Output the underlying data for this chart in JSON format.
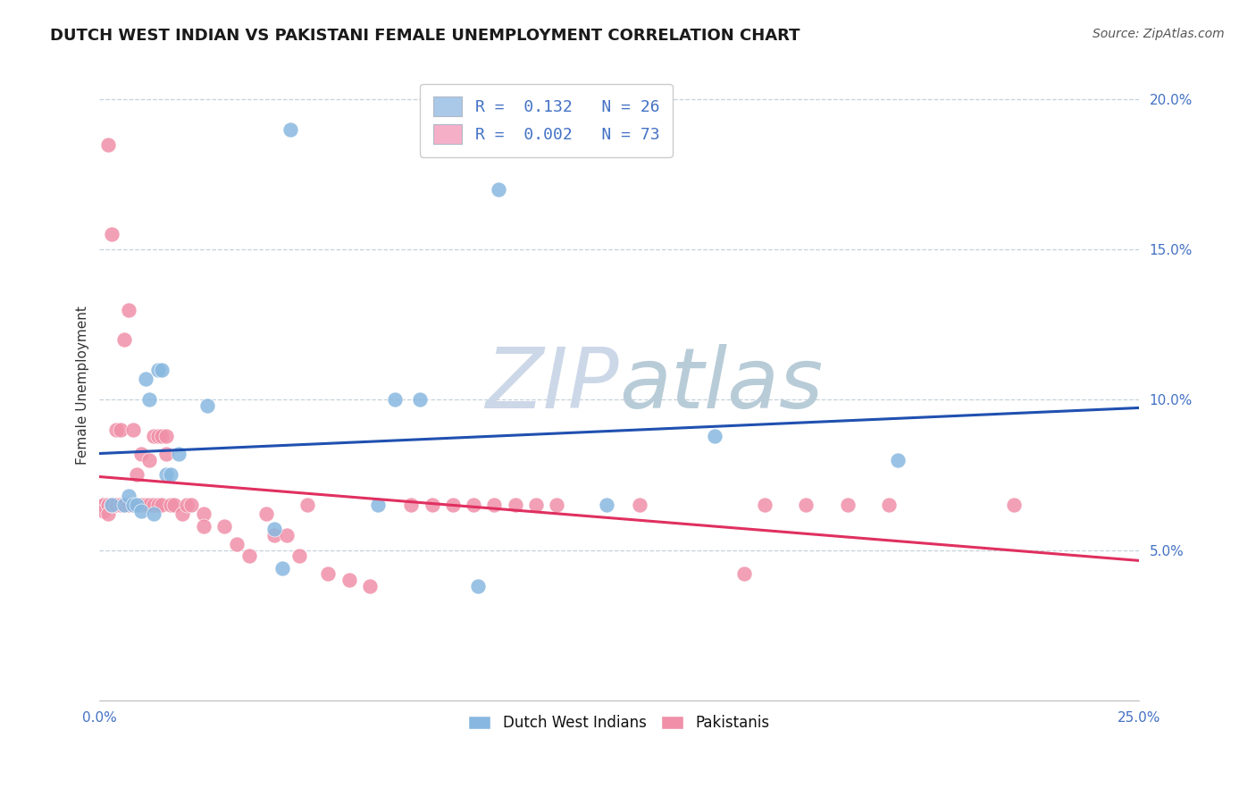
{
  "title": "DUTCH WEST INDIAN VS PAKISTANI FEMALE UNEMPLOYMENT CORRELATION CHART",
  "source": "Source: ZipAtlas.com",
  "ylabel": "Female Unemployment",
  "xlim": [
    0.0,
    0.25
  ],
  "ylim": [
    0.0,
    0.21
  ],
  "x_ticks": [
    0.0,
    0.05,
    0.1,
    0.15,
    0.2,
    0.25
  ],
  "x_tick_labels": [
    "0.0%",
    "",
    "",
    "",
    "",
    "25.0%"
  ],
  "y_ticks_right": [
    0.05,
    0.1,
    0.15,
    0.2
  ],
  "y_tick_labels_right": [
    "5.0%",
    "10.0%",
    "15.0%",
    "20.0%"
  ],
  "legend_label1": "R =  0.132   N = 26",
  "legend_label2": "R =  0.002   N = 73",
  "legend_color1": "#aac8e8",
  "legend_color2": "#f5b0c8",
  "scatter_color1": "#88b8e0",
  "scatter_color2": "#f090a8",
  "line_color1": "#2050b0",
  "line_color2": "#e03060",
  "watermark_color": "#ccd8e8",
  "bg_color": "#ffffff",
  "grid_color": "#c0ccd8",
  "legend_bottom_label1": "Dutch West Indians",
  "legend_bottom_label2": "Pakistanis",
  "dwi_x": [
    0.003,
    0.006,
    0.007,
    0.008,
    0.009,
    0.01,
    0.011,
    0.012,
    0.013,
    0.014,
    0.015,
    0.016,
    0.017,
    0.019,
    0.026,
    0.042,
    0.044,
    0.046,
    0.067,
    0.071,
    0.077,
    0.091,
    0.096,
    0.122,
    0.148,
    0.192
  ],
  "dwi_y": [
    0.065,
    0.065,
    0.068,
    0.065,
    0.065,
    0.063,
    0.107,
    0.1,
    0.062,
    0.11,
    0.11,
    0.075,
    0.075,
    0.082,
    0.098,
    0.057,
    0.044,
    0.19,
    0.065,
    0.1,
    0.1,
    0.038,
    0.17,
    0.065,
    0.088,
    0.08
  ],
  "pak_x": [
    0.001,
    0.001,
    0.001,
    0.002,
    0.002,
    0.002,
    0.002,
    0.003,
    0.003,
    0.003,
    0.004,
    0.004,
    0.004,
    0.004,
    0.005,
    0.005,
    0.005,
    0.006,
    0.006,
    0.006,
    0.007,
    0.007,
    0.007,
    0.008,
    0.008,
    0.009,
    0.009,
    0.01,
    0.01,
    0.011,
    0.012,
    0.012,
    0.013,
    0.013,
    0.014,
    0.014,
    0.015,
    0.015,
    0.016,
    0.016,
    0.017,
    0.018,
    0.02,
    0.021,
    0.022,
    0.025,
    0.025,
    0.03,
    0.033,
    0.036,
    0.04,
    0.042,
    0.045,
    0.048,
    0.05,
    0.055,
    0.06,
    0.065,
    0.075,
    0.08,
    0.085,
    0.09,
    0.095,
    0.1,
    0.105,
    0.11,
    0.13,
    0.155,
    0.16,
    0.17,
    0.18,
    0.19,
    0.22
  ],
  "pak_y": [
    0.065,
    0.065,
    0.063,
    0.065,
    0.065,
    0.062,
    0.185,
    0.065,
    0.065,
    0.155,
    0.065,
    0.065,
    0.065,
    0.09,
    0.065,
    0.065,
    0.09,
    0.065,
    0.065,
    0.12,
    0.13,
    0.065,
    0.065,
    0.065,
    0.09,
    0.065,
    0.075,
    0.065,
    0.082,
    0.065,
    0.065,
    0.08,
    0.065,
    0.088,
    0.088,
    0.065,
    0.065,
    0.088,
    0.082,
    0.088,
    0.065,
    0.065,
    0.062,
    0.065,
    0.065,
    0.062,
    0.058,
    0.058,
    0.052,
    0.048,
    0.062,
    0.055,
    0.055,
    0.048,
    0.065,
    0.042,
    0.04,
    0.038,
    0.065,
    0.065,
    0.065,
    0.065,
    0.065,
    0.065,
    0.065,
    0.065,
    0.065,
    0.042,
    0.065,
    0.065,
    0.065,
    0.065,
    0.065
  ]
}
